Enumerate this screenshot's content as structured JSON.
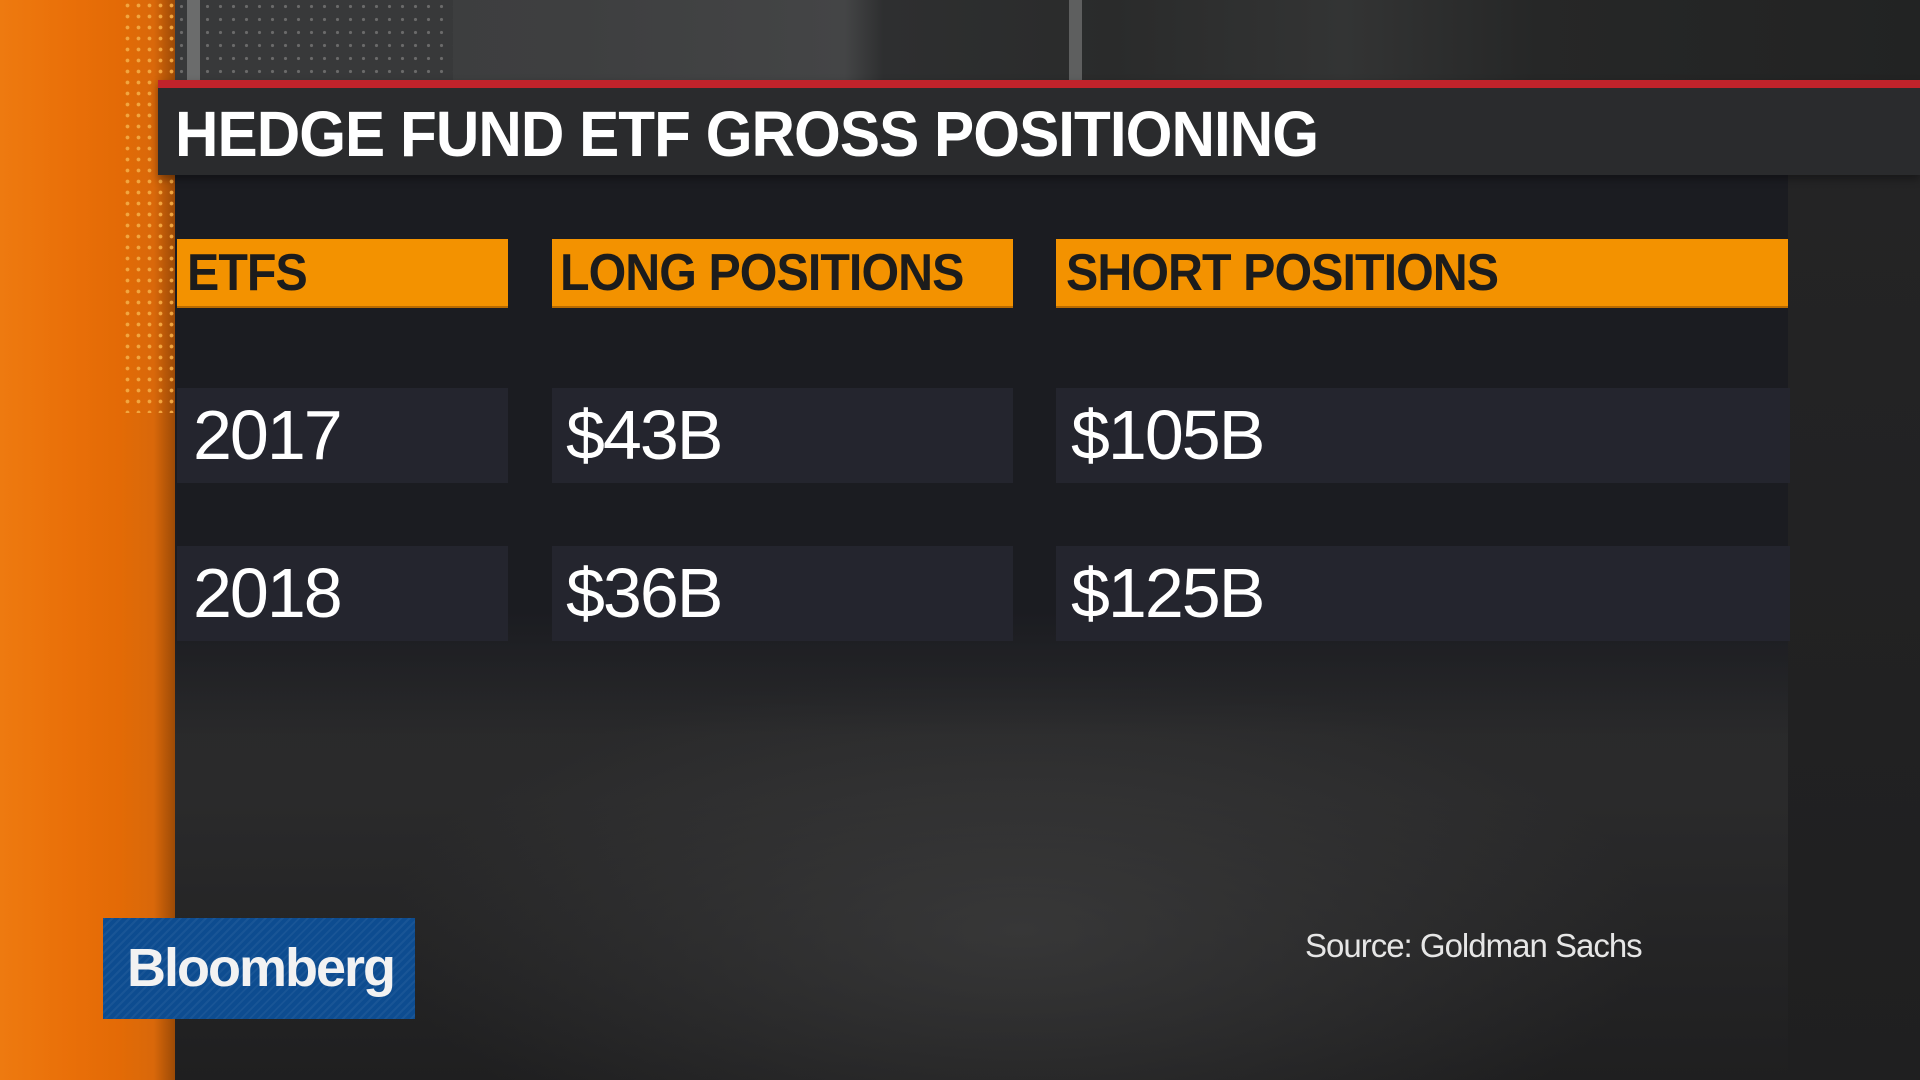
{
  "title": "HEDGE FUND ETF GROSS POSITIONING",
  "table": {
    "headers": [
      "ETFS",
      "LONG POSITIONS",
      "SHORT POSITIONS"
    ],
    "rows": [
      {
        "etfs": "2017",
        "long": "$43B",
        "short": "$105B"
      },
      {
        "etfs": "2018",
        "long": "$36B",
        "short": "$125B"
      }
    ]
  },
  "source": "Source: Goldman Sachs",
  "logo": {
    "text": "Bloomberg"
  },
  "colors": {
    "accent_orange": "#f39200",
    "title_rule_red": "#c1232b",
    "logo_blue": "#0d4c90",
    "cell_bg": "#24252e",
    "panel_bg": "#1b1c21"
  }
}
